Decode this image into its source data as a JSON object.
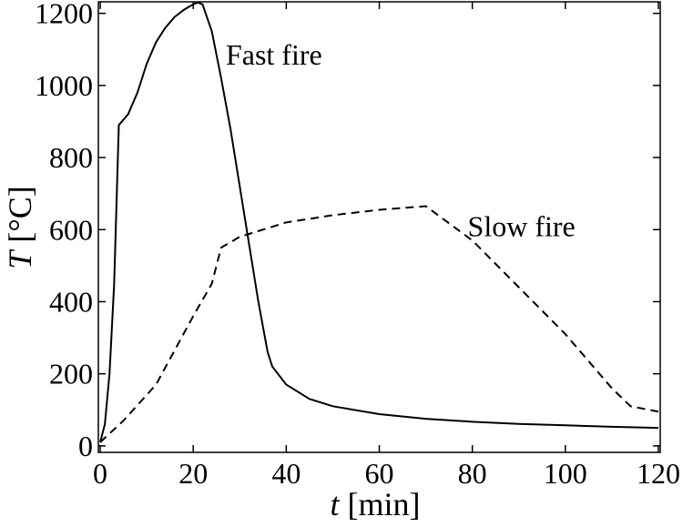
{
  "chart_data": {
    "type": "line",
    "x_label": {
      "symbol": "t",
      "unit": "[min]"
    },
    "y_label": {
      "symbol": "T",
      "unit": "[°C]"
    },
    "xlim": [
      -0.4,
      120.4
    ],
    "ylim": [
      -18,
      1232
    ],
    "xticks": [
      0,
      20,
      40,
      60,
      80,
      100,
      120
    ],
    "yticks": [
      0,
      200,
      400,
      600,
      800,
      1000,
      1200
    ],
    "series": [
      {
        "name": "Fast fire",
        "color": "#000000",
        "linestyle": "solid",
        "label_at": [
          27,
          1085
        ],
        "x": [
          0,
          1,
          2,
          3,
          4,
          6,
          8,
          10,
          12,
          14,
          16,
          18,
          20,
          21,
          22,
          24,
          26,
          28,
          30,
          32,
          34,
          36,
          37,
          40,
          45,
          50,
          60,
          70,
          80,
          90,
          100,
          110,
          120
        ],
        "values": [
          10,
          60,
          200,
          450,
          890,
          920,
          980,
          1060,
          1120,
          1160,
          1190,
          1210,
          1225,
          1230,
          1225,
          1150,
          1020,
          880,
          720,
          560,
          400,
          260,
          220,
          170,
          130,
          110,
          88,
          75,
          67,
          61,
          57,
          53,
          50
        ]
      },
      {
        "name": "Slow fire",
        "color": "#000000",
        "linestyle": "dashed",
        "label_at": [
          79,
          610
        ],
        "x": [
          0,
          5,
          12,
          20,
          24,
          26,
          30,
          40,
          50,
          60,
          70,
          80,
          90,
          100,
          110,
          114,
          120
        ],
        "values": [
          10,
          70,
          170,
          360,
          450,
          550,
          580,
          620,
          640,
          655,
          665,
          570,
          440,
          310,
          160,
          110,
          95
        ]
      }
    ]
  }
}
